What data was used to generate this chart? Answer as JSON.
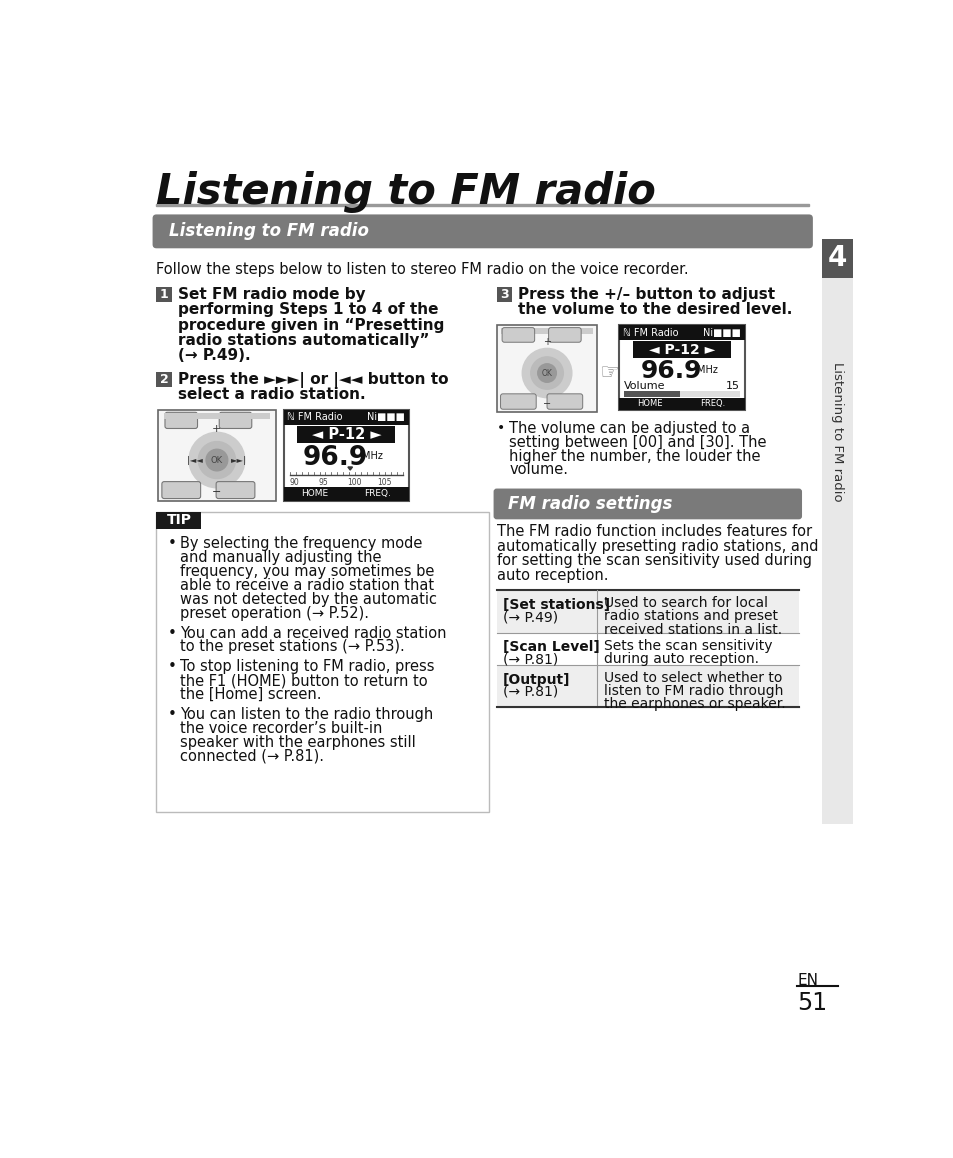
{
  "page_title": "Listening to FM radio",
  "section_header": "Listening to FM radio",
  "intro_text": "Follow the steps below to listen to stereo FM radio on the voice recorder.",
  "step1_lines": [
    "Set FM radio mode by",
    "performing Steps 1 to 4 of the",
    "procedure given in “Presetting",
    "radio stations automatically”",
    "(→ P.49)."
  ],
  "step2_line1": "Press the ►►►| or |◄◄ button to",
  "step2_line2": "select a radio station.",
  "step3_line1": "Press the +/– button to adjust",
  "step3_line2": "the volume to the desired level.",
  "step3_bullet_lines": [
    "•  The volume can be adjusted to a",
    "setting between [00] and [30]. The",
    "higher the number, the louder the",
    "volume."
  ],
  "tip_header": "TIP",
  "tip_bullet_blocks": [
    [
      "By selecting the frequency mode",
      "and manually adjusting the",
      "frequency, you may sometimes be",
      "able to receive a radio station that",
      "was not detected by the automatic",
      "preset operation (→ P.52)."
    ],
    [
      "You can add a received radio station",
      "to the preset stations (→ P.53)."
    ],
    [
      "To stop listening to FM radio, press",
      "the F1 (HOME) button to return to",
      "the [Home] screen."
    ],
    [
      "You can listen to the radio through",
      "the voice recorder’s built-in",
      "speaker with the earphones still",
      "connected (→ P.81)."
    ]
  ],
  "fm_settings_header": "FM radio settings",
  "fm_intro_lines": [
    "The FM radio function includes features for",
    "automatically presetting radio stations, and",
    "for setting the scan sensitivity used during",
    "auto reception."
  ],
  "table_rows": [
    {
      "label1": "[Set stations]",
      "label2": "(→ P.49)",
      "desc_lines": [
        "Used to search for local",
        "radio stations and preset",
        "received stations in a list."
      ]
    },
    {
      "label1": "[Scan Level]",
      "label2": "(→ P.81)",
      "desc_lines": [
        "Sets the scan sensitivity",
        "during auto reception."
      ]
    },
    {
      "label1": "[Output]",
      "label2": "(→ P.81)",
      "desc_lines": [
        "Used to select whether to",
        "listen to FM radio through",
        "the earphones or speaker."
      ]
    }
  ],
  "sidebar_text": "Listening to FM radio",
  "chapter_num": "4",
  "page_num": "51",
  "page_lang": "EN",
  "bg_color": "#ffffff",
  "title_line_color": "#999999",
  "section_bar_color": "#7a7a7a",
  "tip_header_color": "#1a1a1a",
  "step_num_bg": "#555555",
  "sidebar_bg": "#e8e8e8",
  "chapter_bg": "#555555",
  "table_border": "#999999",
  "table_row_bg": [
    "#eeeeee",
    "#ffffff",
    "#eeeeee"
  ]
}
